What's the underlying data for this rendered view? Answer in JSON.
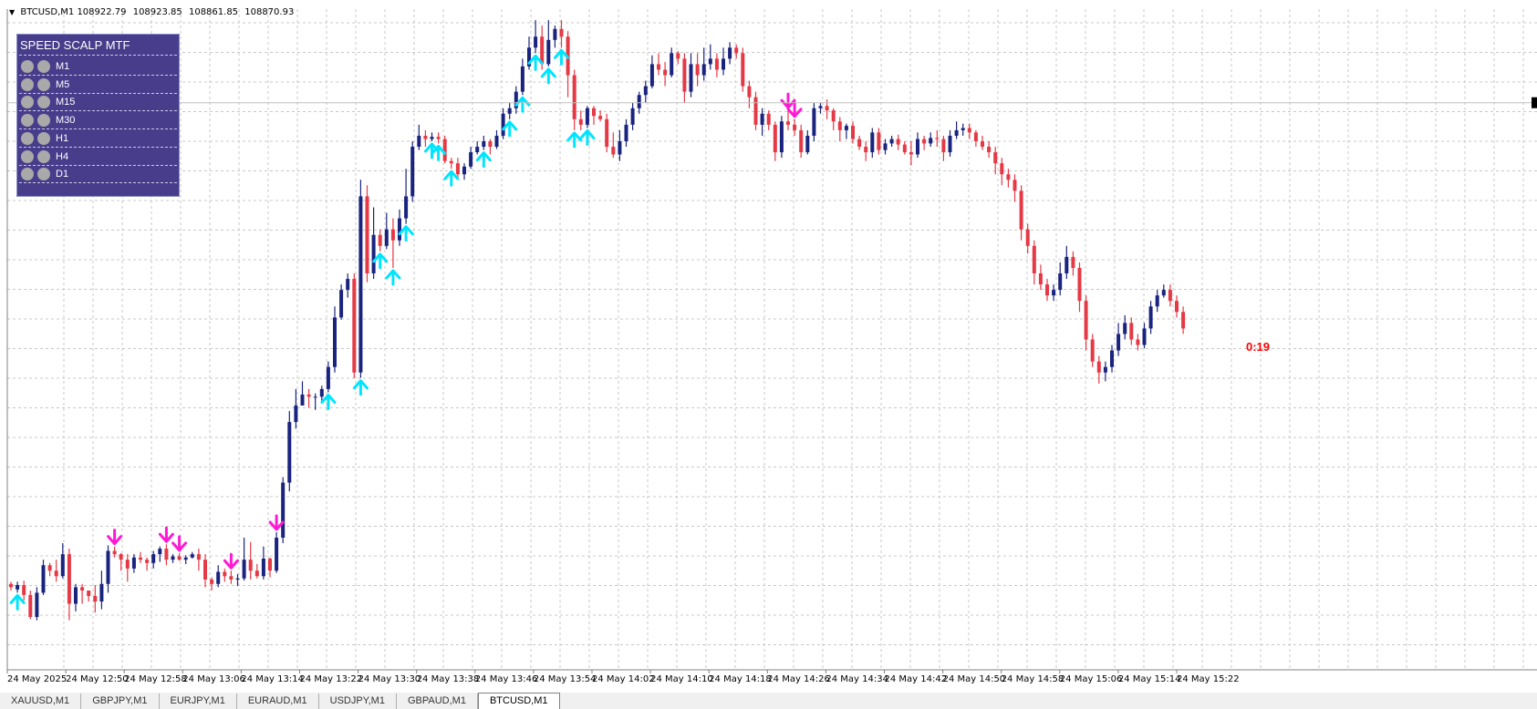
{
  "header": {
    "symbol": "BTCUSD,M1",
    "open": "108922.79",
    "high": "108923.85",
    "low": "108861.85",
    "close": "108870.93"
  },
  "panel": {
    "title": "SPEED SCALP MTF",
    "timeframes": [
      "M1",
      "M5",
      "M15",
      "M30",
      "H1",
      "H4",
      "D1"
    ],
    "dot_color": "#a9a9a9",
    "bg_color": "#483d8b"
  },
  "timer": "0:19",
  "tabs": [
    "XAUUSD,M1",
    "GBPJPY,M1",
    "EURJPY,M1",
    "EURAUD,M1",
    "USDJPY,M1",
    "GBPAUD,M1",
    "BTCUSD,M1"
  ],
  "active_tab": 6,
  "colors": {
    "bull": "#1a237e",
    "bear": "#e53945",
    "buy_arrow": "#00e5ff",
    "sell_arrow": "#ff19d5",
    "grid": "#c8c8c8"
  },
  "chart_data": {
    "type": "candlestick",
    "x_tick_labels": [
      "24 May 2025",
      "24 May 12:50",
      "24 May 12:58",
      "24 May 13:06",
      "24 May 13:14",
      "24 May 13:22",
      "24 May 13:30",
      "24 May 13:38",
      "24 May 13:46",
      "24 May 13:54",
      "24 May 14:02",
      "24 May 14:10",
      "24 May 14:18",
      "24 May 14:26",
      "24 May 14:34",
      "24 May 14:42",
      "24 May 14:50",
      "24 May 14:58",
      "24 May 15:06",
      "24 May 15:14",
      "24 May 15:22"
    ],
    "candles": [
      [
        678,
        675,
        672,
        680
      ],
      [
        673,
        677,
        670,
        680
      ],
      [
        677,
        668,
        663,
        681
      ],
      [
        668,
        648,
        646,
        672
      ],
      [
        648,
        670,
        645,
        675
      ],
      [
        670,
        695,
        668,
        700
      ],
      [
        695,
        690,
        685,
        697
      ],
      [
        690,
        685,
        680,
        700
      ],
      [
        685,
        705,
        683,
        715
      ],
      [
        705,
        660,
        645,
        710
      ],
      [
        660,
        675,
        653,
        678
      ],
      [
        675,
        672,
        660,
        678
      ],
      [
        672,
        667,
        662,
        672
      ],
      [
        667,
        662,
        652,
        677
      ],
      [
        662,
        678,
        655,
        690
      ],
      [
        678,
        708,
        670,
        713
      ],
      [
        708,
        705,
        702,
        712
      ],
      [
        705,
        700,
        690,
        706
      ],
      [
        700,
        692,
        680,
        705
      ],
      [
        692,
        702,
        688,
        705
      ],
      [
        702,
        700,
        697,
        707
      ],
      [
        700,
        697,
        690,
        702
      ],
      [
        697,
        705,
        692,
        708
      ],
      [
        705,
        710,
        698,
        712
      ],
      [
        710,
        700,
        695,
        714
      ],
      [
        700,
        703,
        697,
        705
      ],
      [
        703,
        700,
        699,
        706
      ],
      [
        700,
        702,
        696,
        704
      ],
      [
        702,
        705,
        701,
        707
      ],
      [
        705,
        700,
        690,
        710
      ],
      [
        700,
        682,
        675,
        705
      ],
      [
        682,
        678,
        672,
        684
      ],
      [
        678,
        689,
        675,
        695
      ],
      [
        689,
        685,
        680,
        692
      ],
      [
        685,
        682,
        678,
        690
      ],
      [
        682,
        683,
        676,
        687
      ],
      [
        683,
        700,
        681,
        720
      ],
      [
        700,
        690,
        682,
        716
      ],
      [
        690,
        685,
        683,
        696
      ],
      [
        685,
        701,
        682,
        712
      ],
      [
        701,
        690,
        684,
        702
      ],
      [
        690,
        720,
        688,
        725
      ],
      [
        720,
        770,
        715,
        775
      ],
      [
        770,
        825,
        762,
        835
      ],
      [
        825,
        840,
        819,
        855
      ],
      [
        840,
        850,
        842,
        862
      ],
      [
        850,
        848,
        838,
        855
      ],
      [
        848,
        848,
        836,
        851
      ],
      [
        848,
        855,
        842,
        858
      ],
      [
        855,
        875,
        852,
        880
      ],
      [
        875,
        920,
        870,
        930
      ],
      [
        920,
        945,
        918,
        950
      ],
      [
        945,
        955,
        938,
        960
      ],
      [
        955,
        870,
        865,
        960
      ],
      [
        870,
        1030,
        865,
        1045
      ],
      [
        1030,
        960,
        952,
        1040
      ],
      [
        960,
        995,
        955,
        1020
      ],
      [
        995,
        985,
        980,
        1000
      ],
      [
        985,
        1000,
        982,
        1015
      ],
      [
        1000,
        990,
        965,
        1010
      ],
      [
        990,
        1010,
        985,
        1018
      ],
      [
        1010,
        1030,
        1005,
        1055
      ],
      [
        1030,
        1075,
        1025,
        1080
      ],
      [
        1075,
        1085,
        1072,
        1095
      ],
      [
        1085,
        1082,
        1075,
        1090
      ],
      [
        1082,
        1084,
        1080,
        1088
      ],
      [
        1084,
        1082,
        1078,
        1088
      ],
      [
        1082,
        1062,
        1060,
        1085
      ],
      [
        1062,
        1060,
        1055,
        1065
      ],
      [
        1060,
        1050,
        1045,
        1065
      ],
      [
        1050,
        1057,
        1045,
        1060
      ],
      [
        1057,
        1070,
        1055,
        1075
      ],
      [
        1070,
        1075,
        1068,
        1080
      ],
      [
        1075,
        1080,
        1072,
        1085
      ],
      [
        1080,
        1075,
        1068,
        1082
      ],
      [
        1075,
        1085,
        1073,
        1090
      ],
      [
        1085,
        1105,
        1082,
        1110
      ],
      [
        1105,
        1110,
        1100,
        1115
      ],
      [
        1110,
        1125,
        1105,
        1130
      ],
      [
        1125,
        1148,
        1122,
        1155
      ],
      [
        1148,
        1165,
        1145,
        1175
      ],
      [
        1165,
        1175,
        1160,
        1190
      ],
      [
        1175,
        1150,
        1145,
        1185
      ],
      [
        1150,
        1172,
        1148,
        1190
      ],
      [
        1172,
        1182,
        1165,
        1185
      ],
      [
        1182,
        1175,
        1165,
        1190
      ],
      [
        1175,
        1140,
        1120,
        1180
      ],
      [
        1140,
        1100,
        1090,
        1145
      ],
      [
        1100,
        1095,
        1090,
        1108
      ],
      [
        1095,
        1110,
        1092,
        1112
      ],
      [
        1110,
        1103,
        1095,
        1112
      ],
      [
        1103,
        1100,
        1098,
        1108
      ],
      [
        1100,
        1075,
        1070,
        1105
      ],
      [
        1075,
        1068,
        1065,
        1088
      ],
      [
        1068,
        1080,
        1062,
        1090
      ],
      [
        1080,
        1095,
        1075,
        1100
      ],
      [
        1095,
        1110,
        1090,
        1115
      ],
      [
        1110,
        1122,
        1105,
        1125
      ],
      [
        1122,
        1130,
        1115,
        1135
      ],
      [
        1130,
        1150,
        1128,
        1158
      ],
      [
        1150,
        1145,
        1140,
        1160
      ],
      [
        1145,
        1140,
        1130,
        1152
      ],
      [
        1140,
        1160,
        1138,
        1165
      ],
      [
        1160,
        1155,
        1150,
        1162
      ],
      [
        1155,
        1125,
        1115,
        1160
      ],
      [
        1125,
        1150,
        1120,
        1160
      ],
      [
        1150,
        1140,
        1130,
        1160
      ],
      [
        1140,
        1150,
        1135,
        1165
      ],
      [
        1150,
        1155,
        1145,
        1168
      ],
      [
        1155,
        1145,
        1138,
        1160
      ],
      [
        1145,
        1155,
        1140,
        1165
      ],
      [
        1155,
        1165,
        1150,
        1170
      ],
      [
        1165,
        1160,
        1155,
        1168
      ],
      [
        1160,
        1130,
        1125,
        1165
      ],
      [
        1130,
        1120,
        1110,
        1135
      ],
      [
        1120,
        1095,
        1090,
        1125
      ],
      [
        1095,
        1105,
        1085,
        1110
      ],
      [
        1105,
        1095,
        1090,
        1108
      ],
      [
        1095,
        1070,
        1062,
        1098
      ],
      [
        1070,
        1098,
        1065,
        1103
      ],
      [
        1098,
        1095,
        1090,
        1108
      ],
      [
        1095,
        1090,
        1085,
        1100
      ],
      [
        1090,
        1070,
        1065,
        1095
      ],
      [
        1070,
        1085,
        1068,
        1090
      ],
      [
        1085,
        1110,
        1080,
        1115
      ],
      [
        1110,
        1112,
        1105,
        1115
      ],
      [
        1112,
        1108,
        1100,
        1118
      ],
      [
        1108,
        1098,
        1090,
        1110
      ],
      [
        1098,
        1090,
        1080,
        1102
      ],
      [
        1090,
        1094,
        1082,
        1096
      ],
      [
        1094,
        1082,
        1078,
        1098
      ],
      [
        1082,
        1075,
        1072,
        1085
      ],
      [
        1075,
        1070,
        1062,
        1080
      ],
      [
        1070,
        1088,
        1065,
        1092
      ],
      [
        1088,
        1072,
        1068,
        1092
      ],
      [
        1072,
        1078,
        1068,
        1082
      ],
      [
        1078,
        1082,
        1075,
        1085
      ],
      [
        1082,
        1077,
        1072,
        1086
      ],
      [
        1077,
        1070,
        1068,
        1080
      ],
      [
        1070,
        1068,
        1058,
        1080
      ],
      [
        1068,
        1082,
        1065,
        1088
      ],
      [
        1082,
        1078,
        1072,
        1085
      ],
      [
        1078,
        1083,
        1075,
        1088
      ],
      [
        1083,
        1082,
        1075,
        1090
      ],
      [
        1082,
        1070,
        1062,
        1085
      ],
      [
        1070,
        1085,
        1066,
        1090
      ],
      [
        1085,
        1090,
        1082,
        1098
      ],
      [
        1090,
        1092,
        1085,
        1096
      ],
      [
        1092,
        1088,
        1082,
        1096
      ],
      [
        1088,
        1080,
        1075,
        1090
      ],
      [
        1080,
        1075,
        1072,
        1085
      ],
      [
        1075,
        1070,
        1065,
        1080
      ],
      [
        1070,
        1060,
        1050,
        1075
      ],
      [
        1060,
        1050,
        1040,
        1065
      ],
      [
        1050,
        1045,
        1038,
        1055
      ],
      [
        1045,
        1035,
        1025,
        1050
      ],
      [
        1035,
        1000,
        990,
        1040
      ],
      [
        1000,
        985,
        978,
        1005
      ],
      [
        985,
        960,
        950,
        990
      ],
      [
        960,
        950,
        945,
        968
      ],
      [
        950,
        940,
        935,
        955
      ],
      [
        940,
        945,
        935,
        950
      ],
      [
        945,
        960,
        940,
        970
      ],
      [
        960,
        975,
        955,
        985
      ],
      [
        975,
        965,
        958,
        980
      ],
      [
        965,
        935,
        925,
        970
      ],
      [
        935,
        900,
        890,
        940
      ],
      [
        900,
        880,
        875,
        905
      ],
      [
        880,
        870,
        860,
        885
      ],
      [
        870,
        875,
        862,
        880
      ],
      [
        875,
        890,
        870,
        895
      ],
      [
        890,
        905,
        885,
        915
      ],
      [
        905,
        915,
        900,
        922
      ],
      [
        915,
        900,
        895,
        920
      ],
      [
        900,
        895,
        890,
        905
      ],
      [
        895,
        910,
        892,
        915
      ],
      [
        910,
        930,
        905,
        935
      ],
      [
        930,
        940,
        925,
        945
      ],
      [
        940,
        945,
        938,
        950
      ],
      [
        945,
        935,
        930,
        950
      ],
      [
        935,
        925,
        920,
        940
      ],
      [
        925,
        910,
        905,
        930
      ]
    ],
    "buy_arrows": [
      1,
      49,
      54,
      57,
      59,
      61,
      65,
      66,
      68,
      73,
      77,
      79,
      81,
      83,
      85,
      87,
      89
    ],
    "sell_arrows": [
      16,
      24,
      26,
      34,
      41,
      120,
      121
    ],
    "current_price": 1115,
    "ylim": [
      600,
      1200
    ]
  }
}
